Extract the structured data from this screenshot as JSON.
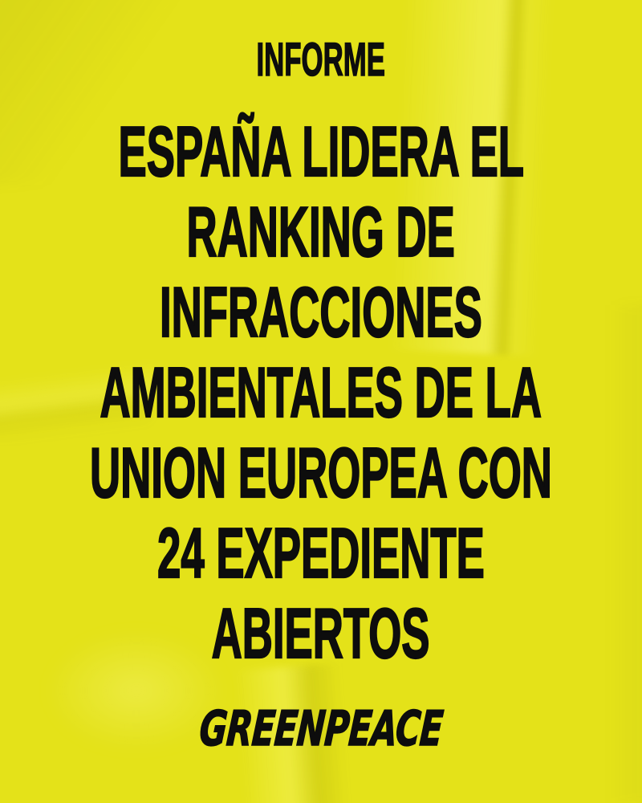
{
  "poster": {
    "kicker": "INFORME",
    "headline_lines": [
      "ESPAÑA LIDERA EL",
      "RANKING DE",
      "INFRACCIONES",
      "AMBIENTALES DE LA",
      "UNION EUROPEA CON",
      "24 EXPEDIENTE",
      "ABIERTOS"
    ],
    "logo_text": "GREENPEACE"
  },
  "colors": {
    "background": "#e4e219",
    "text": "#0d0d0d"
  }
}
